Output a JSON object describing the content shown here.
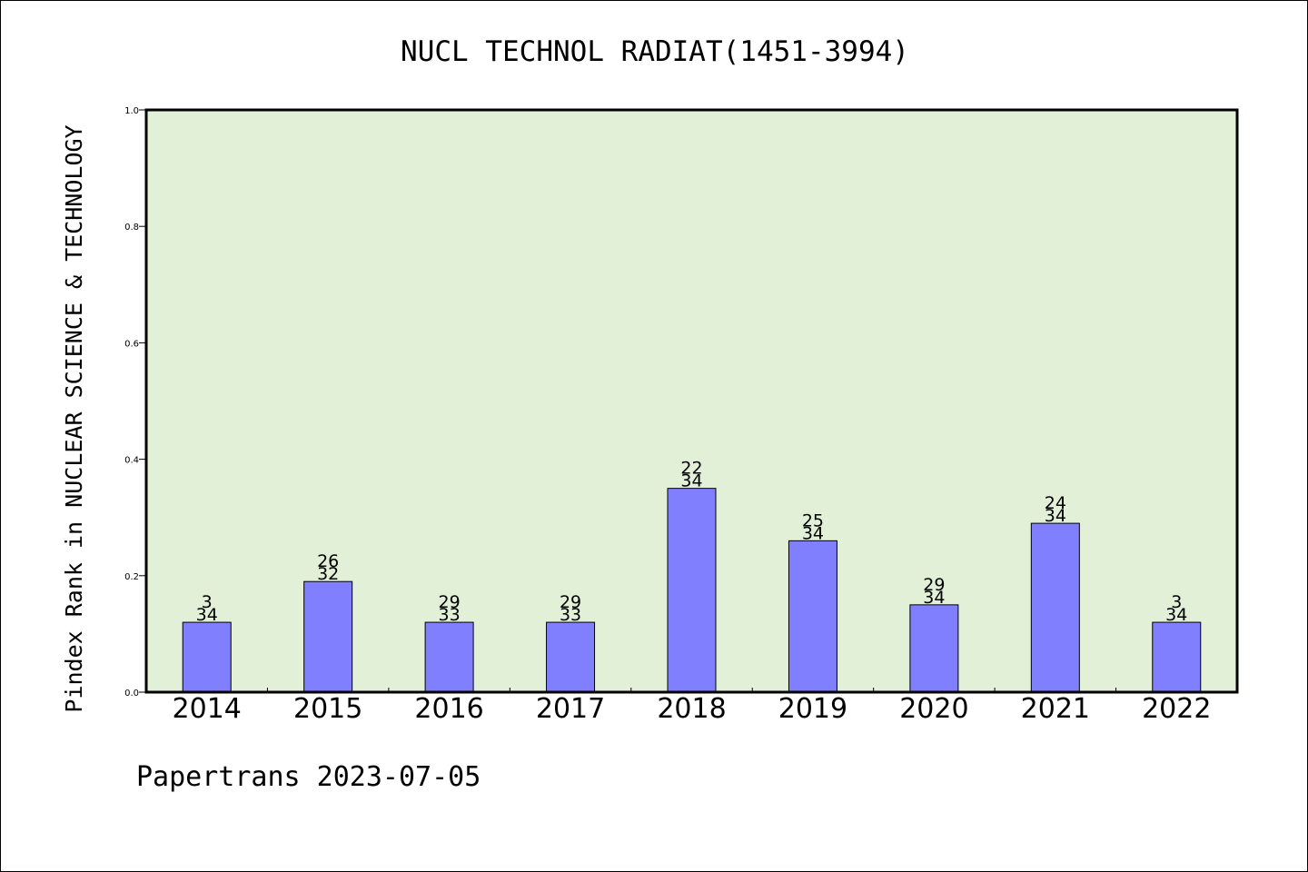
{
  "chart_data": {
    "type": "bar",
    "title": "NUCL TECHNOL RADIAT(1451-3994)",
    "ylabel": "Pindex Rank in NUCLEAR SCIENCE & TECHNOLOGY",
    "xlabel": "",
    "categories": [
      "2014",
      "2015",
      "2016",
      "2017",
      "2018",
      "2019",
      "2020",
      "2021",
      "2022"
    ],
    "values": [
      0.12,
      0.19,
      0.12,
      0.12,
      0.35,
      0.26,
      0.15,
      0.29,
      0.12
    ],
    "ranks": [
      "3",
      "26",
      "29",
      "29",
      "22",
      "25",
      "29",
      "24",
      "3"
    ],
    "totals": [
      "34",
      "32",
      "33",
      "33",
      "34",
      "34",
      "34",
      "34",
      "34"
    ],
    "ylim": [
      0,
      1.0
    ],
    "yticks": [
      "0.0",
      "0.2",
      "0.4",
      "0.6",
      "0.8",
      "1.0"
    ],
    "grid": false,
    "colors": {
      "bar_fill": "#8080ff",
      "plot_background": "#e2f0d7",
      "axis": "#000000"
    }
  },
  "footer": {
    "text": "Papertrans 2023-07-05"
  }
}
